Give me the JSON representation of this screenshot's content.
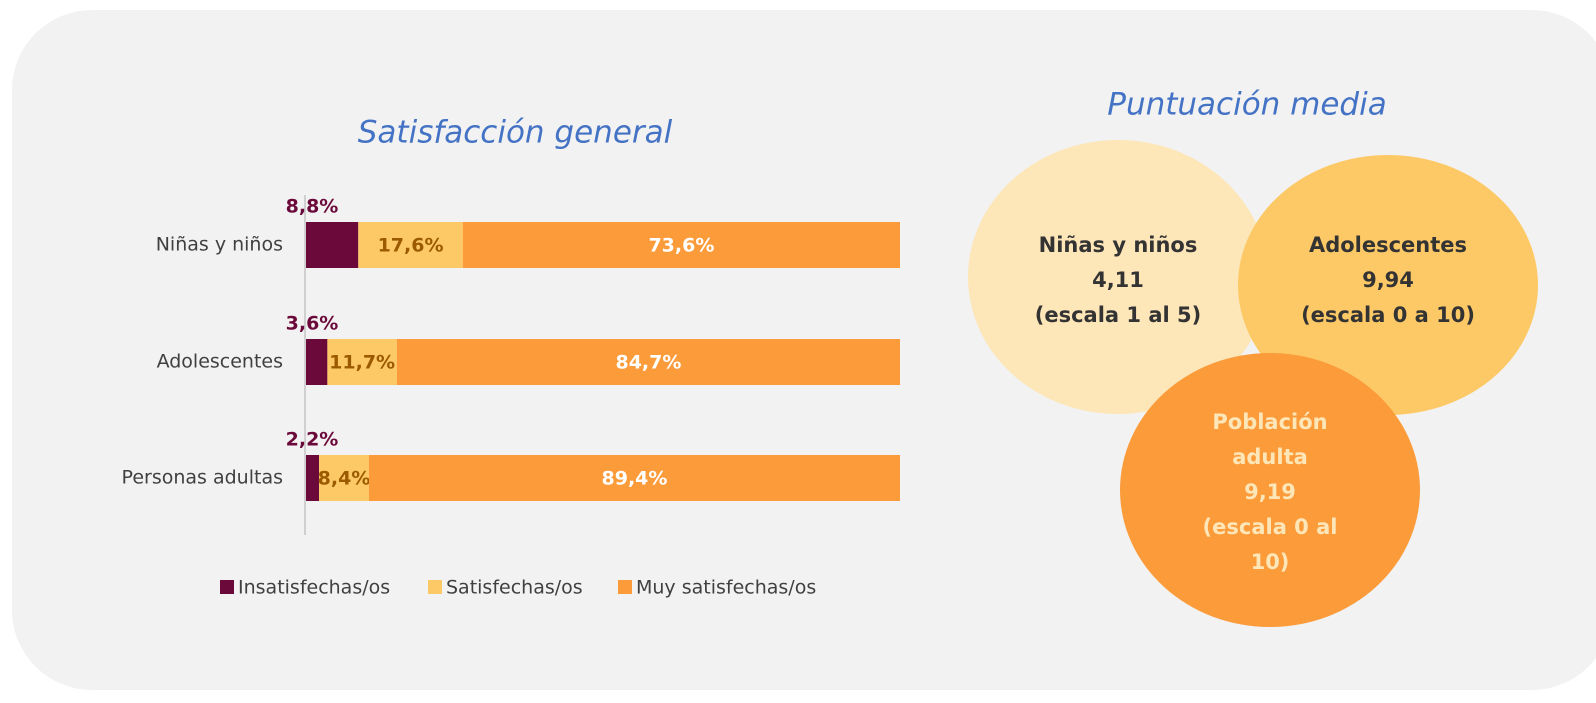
{
  "chart_data": {
    "type": "stacked-bar",
    "orientation": "horizontal",
    "title": "Satisfacción general",
    "categories": [
      "Niñas y niños",
      "Adolescentes",
      "Personas adultas"
    ],
    "series": [
      {
        "name": "Insatisfechas/os",
        "color": "#6b0a3a",
        "values": [
          8.8,
          3.6,
          2.2
        ],
        "value_labels": [
          "8,8%",
          "3,6%",
          "2,2%"
        ]
      },
      {
        "name": "Satisfechas/os",
        "color": "#fdc966",
        "values": [
          17.6,
          11.7,
          8.4
        ],
        "value_labels": [
          "17,6%",
          "11,7%",
          "8,4%"
        ]
      },
      {
        "name": "Muy satisfechas/os",
        "color": "#fb9b3a",
        "values": [
          73.6,
          84.7,
          89.4
        ],
        "value_labels": [
          "73,6%",
          "84,7%",
          "89,4%"
        ]
      }
    ],
    "xlim": [
      0,
      100
    ],
    "legend": "bottom"
  },
  "bubbles": {
    "title": "Puntuación media",
    "items": [
      {
        "label": "Niñas y niños",
        "value": "4,11",
        "scale": "(escala 1 al 5)",
        "color": "#fde6b8"
      },
      {
        "label": "Adolescentes",
        "value": "9,94",
        "scale": "(escala 0 a 10)",
        "color": "#fdc966"
      },
      {
        "label": "Población adulta",
        "value": "9,19",
        "scale": "(escala 0 al 10)",
        "color": "#fb9b3a"
      }
    ]
  }
}
